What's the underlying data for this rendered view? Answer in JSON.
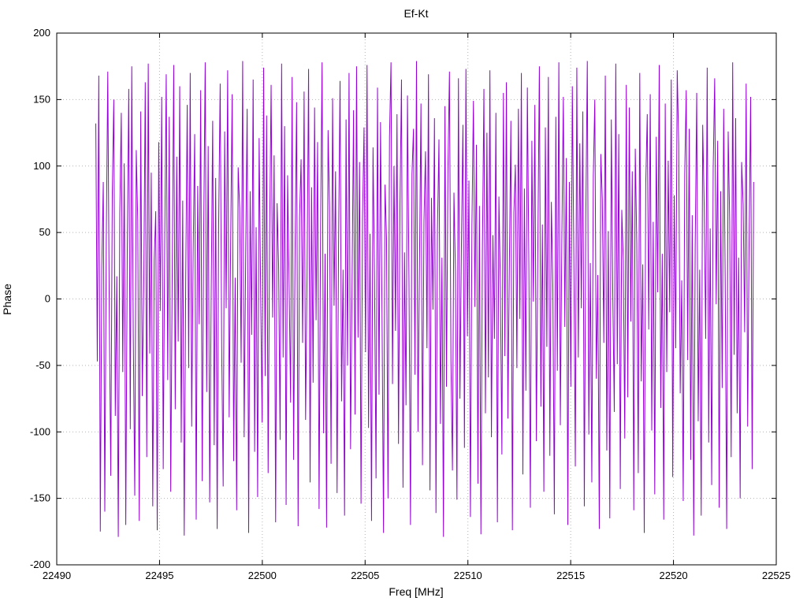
{
  "chart_data": {
    "type": "line",
    "title": "Ef-Kt",
    "xlabel": "Freq [MHz]",
    "ylabel": "Phase",
    "xlim": [
      22490,
      22525
    ],
    "ylim": [
      -200,
      200
    ],
    "xticks": [
      22490,
      22495,
      22500,
      22505,
      22510,
      22515,
      22520,
      22525
    ],
    "yticks": [
      -200,
      -150,
      -100,
      -50,
      0,
      50,
      100,
      150,
      200
    ],
    "grid": true,
    "legend": "none",
    "line_color": "#9400D3",
    "series": [
      {
        "name": "phase",
        "x_start": 22491.9,
        "x_end": 22523.9,
        "values": [
          132,
          -47,
          168,
          -175,
          23,
          88,
          -160,
          45,
          171,
          -12,
          -133,
          79,
          150,
          -88,
          17,
          -179,
          64,
          140,
          -55,
          102,
          -170,
          36,
          158,
          -98,
          175,
          -26,
          -148,
          112,
          59,
          -167,
          141,
          -73,
          8,
          163,
          -119,
          177,
          -41,
          95,
          -156,
          29,
          66,
          -174,
          118,
          -9,
          152,
          -128,
          44,
          169,
          -61,
          137,
          -145,
          21,
          176,
          -83,
          107,
          -32,
          160,
          -108,
          74,
          -178,
          13,
          146,
          -52,
          170,
          -96,
          38,
          124,
          -166,
          85,
          -19,
          157,
          -137,
          50,
          178,
          -70,
          115,
          -153,
          3,
          134,
          -110,
          91,
          -173,
          57,
          162,
          -35,
          -141,
          126,
          -7,
          172,
          -89,
          43,
          154,
          -122,
          16,
          -159,
          99,
          68,
          -48,
          179,
          -104,
          30,
          143,
          -176,
          81,
          -27,
          165,
          -115,
          54,
          -149,
          121,
          6,
          -93,
          174,
          -58,
          138,
          -131,
          47,
          161,
          -14,
          108,
          -168,
          72,
          25,
          -106,
          177,
          -44,
          130,
          -155,
          93,
          11,
          -78,
          167,
          -121,
          39,
          148,
          -171,
          62,
          105,
          -33,
          156,
          -91,
          19,
          173,
          -138,
          84,
          -63,
          144,
          -16,
          118,
          -158,
          53,
          178,
          -101,
          34,
          -172,
          127,
          69,
          -124,
          151,
          -5,
          96,
          -146,
          41,
          164,
          -77,
          22,
          -163,
          135,
          -50,
          170,
          -113,
          8,
          142,
          -87,
          175,
          -29,
          103,
          -154,
          60,
          129,
          -40,
          176,
          -97,
          49,
          -167,
          114,
          15,
          -135,
          159,
          -72,
          133,
          -11,
          -176,
          86,
          46,
          -150,
          122,
          178,
          -64,
          100,
          -24,
          139,
          -109,
          71,
          165,
          -142,
          35,
          -80,
          153,
          12,
          -170,
          94,
          128,
          -57,
          179,
          -100,
          26,
          147,
          -125,
          58,
          111,
          -37,
          169,
          -144,
          76,
          -8,
          136,
          -161,
          51,
          120,
          -94,
          31,
          -179,
          145,
          -66,
          98,
          171,
          -47,
          -129,
          80,
          20,
          -151,
          166,
          -75,
          42,
          131,
          -112,
          173,
          -28,
          89,
          -164,
          55,
          149,
          -6,
          116,
          -139,
          70,
          -177,
          37,
          158,
          -86,
          125,
          -59,
          172,
          -104,
          48,
          -30,
          140,
          -168,
          77,
          9,
          -117,
          155,
          -43,
          163,
          -90,
          28,
          134,
          -174,
          65,
          101,
          -52,
          143,
          -15,
          170,
          -132,
          83,
          -69,
          159,
          24,
          -157,
          119,
          -2,
          146,
          -107,
          40,
          175,
          -81,
          56,
          -145,
          129,
          -36,
          167,
          -118,
          73,
          10,
          -162,
          137,
          -54,
          178,
          -95,
          45,
          152,
          -21,
          106,
          -170,
          88,
          -66,
          160,
          32,
          -126,
          174,
          -44,
          117,
          -7,
          141,
          -156,
          61,
          179,
          -102,
          27,
          -138,
          92,
          150,
          -60,
          18,
          -173,
          109,
          75,
          -33,
          168,
          -114,
          51,
          -165,
          135,
          3,
          -85,
          177,
          -49,
          124,
          -143,
          67,
          29,
          -105,
          161,
          -74,
          144,
          -17,
          96,
          -159,
          113,
          42,
          -131,
          170,
          -62,
          26,
          -176,
          87,
          139,
          -23,
          154,
          -99,
          58,
          -147,
          122,
          5,
          176,
          -82,
          34,
          -166,
          147,
          -55,
          104,
          -10,
          165,
          -134,
          78,
          -37,
          172,
          116,
          -71,
          14,
          -152,
          94,
          157,
          -46,
          128,
          -121,
          63,
          -178,
          39,
          155,
          -92,
          22,
          -163,
          131,
          70,
          -30,
          174,
          -108,
          53,
          -140,
          98,
          166,
          -4,
          119,
          -157,
          81,
          -67,
          143,
          16,
          -173,
          126,
          59,
          -119,
          178,
          -42,
          136,
          -86,
          31,
          -150,
          103,
          71,
          -25,
          162,
          -96,
          48,
          152,
          -128,
          88
        ]
      }
    ]
  }
}
